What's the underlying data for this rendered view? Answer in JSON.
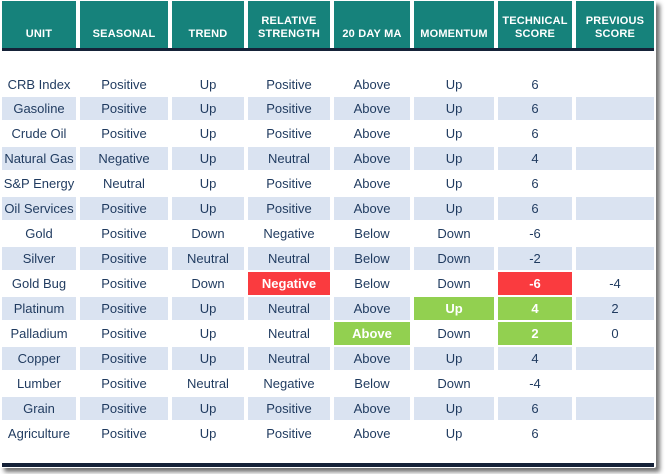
{
  "colors": {
    "header_bg": "#16827B",
    "header_text": "#FFFFFF",
    "border_navy": "#152238",
    "row_alt": "#DAE3F1",
    "text": "#1F3A5F",
    "hl_red": "#FA3B3F",
    "hl_green": "#92D050"
  },
  "table": {
    "columns": [
      {
        "key": "unit",
        "label": "UNIT"
      },
      {
        "key": "seasonal",
        "label": "SEASONAL"
      },
      {
        "key": "trend",
        "label": "TREND"
      },
      {
        "key": "relative_strength",
        "label": "RELATIVE STRENGTH"
      },
      {
        "key": "ma20",
        "label": "20 DAY MA"
      },
      {
        "key": "momentum",
        "label": "MOMENTUM"
      },
      {
        "key": "technical_score",
        "label": "TECHNICAL SCORE"
      },
      {
        "key": "previous_score",
        "label": "PREVIOUS SCORE"
      }
    ],
    "rows": [
      {
        "values": {
          "unit": "CRB Index",
          "seasonal": "Positive",
          "trend": "Up",
          "relative_strength": "Positive",
          "ma20": "Above",
          "momentum": "Up",
          "technical_score": "6",
          "previous_score": ""
        }
      },
      {
        "values": {
          "unit": "Gasoline",
          "seasonal": "Positive",
          "trend": "Up",
          "relative_strength": "Positive",
          "ma20": "Above",
          "momentum": "Up",
          "technical_score": "6",
          "previous_score": ""
        }
      },
      {
        "values": {
          "unit": "Crude Oil",
          "seasonal": "Positive",
          "trend": "Up",
          "relative_strength": "Positive",
          "ma20": "Above",
          "momentum": "Up",
          "technical_score": "6",
          "previous_score": ""
        }
      },
      {
        "values": {
          "unit": "Natural Gas",
          "seasonal": "Negative",
          "trend": "Up",
          "relative_strength": "Neutral",
          "ma20": "Above",
          "momentum": "Up",
          "technical_score": "4",
          "previous_score": ""
        }
      },
      {
        "values": {
          "unit": "S&P Energy",
          "seasonal": "Neutral",
          "trend": "Up",
          "relative_strength": "Positive",
          "ma20": "Above",
          "momentum": "Up",
          "technical_score": "6",
          "previous_score": ""
        }
      },
      {
        "values": {
          "unit": "Oil Services",
          "seasonal": "Positive",
          "trend": "Up",
          "relative_strength": "Positive",
          "ma20": "Above",
          "momentum": "Up",
          "technical_score": "6",
          "previous_score": ""
        }
      },
      {
        "values": {
          "unit": "Gold",
          "seasonal": "Positive",
          "trend": "Down",
          "relative_strength": "Negative",
          "ma20": "Below",
          "momentum": "Down",
          "technical_score": "-6",
          "previous_score": ""
        }
      },
      {
        "values": {
          "unit": "Silver",
          "seasonal": "Positive",
          "trend": "Neutral",
          "relative_strength": "Neutral",
          "ma20": "Below",
          "momentum": "Down",
          "technical_score": "-2",
          "previous_score": ""
        }
      },
      {
        "values": {
          "unit": "Gold Bug",
          "seasonal": "Positive",
          "trend": "Down",
          "relative_strength": "Negative",
          "ma20": "Below",
          "momentum": "Down",
          "technical_score": "-6",
          "previous_score": "-4"
        },
        "highlights": {
          "relative_strength": "red",
          "technical_score": "red"
        }
      },
      {
        "values": {
          "unit": "Platinum",
          "seasonal": "Positive",
          "trend": "Up",
          "relative_strength": "Neutral",
          "ma20": "Above",
          "momentum": "Up",
          "technical_score": "4",
          "previous_score": "2"
        },
        "highlights": {
          "momentum": "green",
          "technical_score": "green"
        }
      },
      {
        "values": {
          "unit": "Palladium",
          "seasonal": "Positive",
          "trend": "Up",
          "relative_strength": "Neutral",
          "ma20": "Above",
          "momentum": "Down",
          "technical_score": "2",
          "previous_score": "0"
        },
        "highlights": {
          "ma20": "green",
          "technical_score": "green"
        }
      },
      {
        "values": {
          "unit": "Copper",
          "seasonal": "Positive",
          "trend": "Up",
          "relative_strength": "Neutral",
          "ma20": "Above",
          "momentum": "Up",
          "technical_score": "4",
          "previous_score": ""
        }
      },
      {
        "values": {
          "unit": "Lumber",
          "seasonal": "Positive",
          "trend": "Neutral",
          "relative_strength": "Negative",
          "ma20": "Below",
          "momentum": "Down",
          "technical_score": "-4",
          "previous_score": ""
        }
      },
      {
        "values": {
          "unit": "Grain",
          "seasonal": "Positive",
          "trend": "Up",
          "relative_strength": "Positive",
          "ma20": "Above",
          "momentum": "Up",
          "technical_score": "6",
          "previous_score": ""
        }
      },
      {
        "values": {
          "unit": "Agriculture",
          "seasonal": "Positive",
          "trend": "Up",
          "relative_strength": "Positive",
          "ma20": "Above",
          "momentum": "Up",
          "technical_score": "6",
          "previous_score": ""
        }
      }
    ]
  }
}
